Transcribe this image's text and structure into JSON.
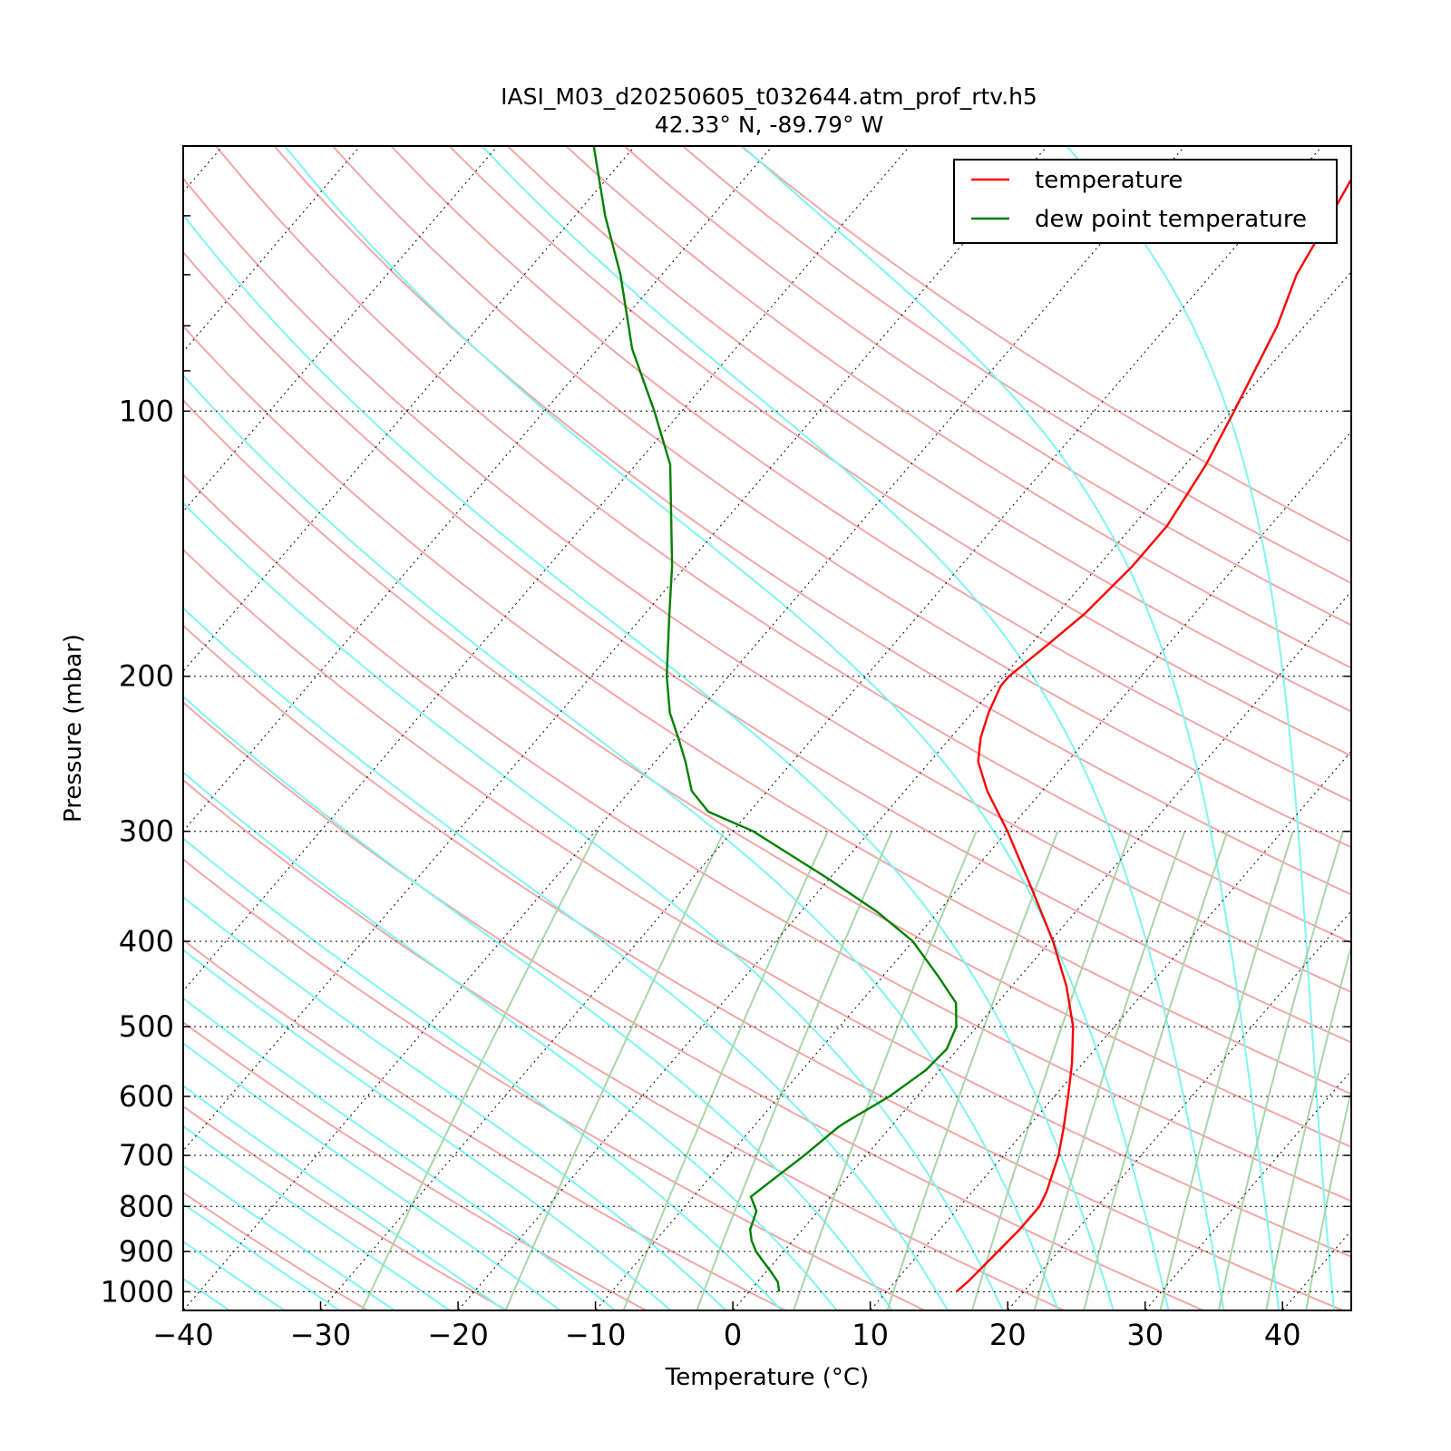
{
  "chart_data": {
    "type": "line",
    "title": "IASI_M03_d20250605_t032644.atm_prof_rtv.h5",
    "subtitle": "42.33° N, -89.79° W",
    "xlabel": "Temperature (°C)",
    "ylabel": "Pressure (mbar)",
    "xlim": [
      -40,
      45
    ],
    "ylim": [
      1050,
      50
    ],
    "yscale": "log",
    "skew": true,
    "x_ticks": [
      "−40",
      "−30",
      "−20",
      "−10",
      "0",
      "10",
      "20",
      "30",
      "40"
    ],
    "y_ticks": [
      "100",
      "200",
      "300",
      "400",
      "500",
      "600",
      "700",
      "800",
      "900",
      "1000"
    ],
    "legend": {
      "position": "top-right",
      "entries": [
        "temperature",
        "dew point temperature"
      ]
    },
    "colors": {
      "temperature": "#ff0000",
      "dew_point": "#008000",
      "dry_adiabats": "#f4a6a6",
      "moist_adiabats": "#7ff5f0",
      "mixing_ratio": "#a8d5a8",
      "isotherms": "#000000"
    },
    "series": [
      {
        "name": "temperature",
        "points": [
          {
            "p": 1000,
            "t": 15.1
          },
          {
            "p": 975,
            "t": 15.3
          },
          {
            "p": 950,
            "t": 15.4
          },
          {
            "p": 925,
            "t": 15.5
          },
          {
            "p": 900,
            "t": 15.6
          },
          {
            "p": 850,
            "t": 15.8
          },
          {
            "p": 800,
            "t": 15.8
          },
          {
            "p": 770,
            "t": 15.4
          },
          {
            "p": 700,
            "t": 14.0
          },
          {
            "p": 650,
            "t": 12.6
          },
          {
            "p": 600,
            "t": 11.0
          },
          {
            "p": 550,
            "t": 9.2
          },
          {
            "p": 500,
            "t": 7.0
          },
          {
            "p": 450,
            "t": 4.0
          },
          {
            "p": 400,
            "t": 0.2
          },
          {
            "p": 350,
            "t": -4.5
          },
          {
            "p": 300,
            "t": -10.0
          },
          {
            "p": 270,
            "t": -14.0
          },
          {
            "p": 250,
            "t": -16.5
          },
          {
            "p": 235,
            "t": -17.8
          },
          {
            "p": 220,
            "t": -18.8
          },
          {
            "p": 205,
            "t": -19.6
          },
          {
            "p": 200,
            "t": -19.6
          },
          {
            "p": 185,
            "t": -18.8
          },
          {
            "p": 170,
            "t": -18.0
          },
          {
            "p": 150,
            "t": -17.5
          },
          {
            "p": 135,
            "t": -17.5
          },
          {
            "p": 115,
            "t": -18.5
          },
          {
            "p": 100,
            "t": -19.8
          },
          {
            "p": 80,
            "t": -22.0
          },
          {
            "p": 70,
            "t": -23.8
          },
          {
            "p": 60,
            "t": -25.0
          },
          {
            "p": 50,
            "t": -26.5
          }
        ]
      },
      {
        "name": "dew point temperature",
        "points": [
          {
            "p": 1000,
            "t": 2.2
          },
          {
            "p": 975,
            "t": 1.5
          },
          {
            "p": 950,
            "t": 0.4
          },
          {
            "p": 925,
            "t": -0.8
          },
          {
            "p": 900,
            "t": -2.0
          },
          {
            "p": 875,
            "t": -3.0
          },
          {
            "p": 850,
            "t": -3.8
          },
          {
            "p": 810,
            "t": -4.5
          },
          {
            "p": 780,
            "t": -5.8
          },
          {
            "p": 760,
            "t": -5.5
          },
          {
            "p": 700,
            "t": -4.5
          },
          {
            "p": 650,
            "t": -3.8
          },
          {
            "p": 640,
            "t": -3.5
          },
          {
            "p": 600,
            "t": -2.0
          },
          {
            "p": 560,
            "t": -1.0
          },
          {
            "p": 530,
            "t": -0.8
          },
          {
            "p": 500,
            "t": -1.5
          },
          {
            "p": 470,
            "t": -3.0
          },
          {
            "p": 440,
            "t": -5.8
          },
          {
            "p": 400,
            "t": -10.0
          },
          {
            "p": 370,
            "t": -14.5
          },
          {
            "p": 340,
            "t": -20.0
          },
          {
            "p": 300,
            "t": -28.5
          },
          {
            "p": 285,
            "t": -33.0
          },
          {
            "p": 270,
            "t": -35.5
          },
          {
            "p": 250,
            "t": -37.8
          },
          {
            "p": 235,
            "t": -39.8
          },
          {
            "p": 220,
            "t": -42.0
          },
          {
            "p": 200,
            "t": -44.5
          },
          {
            "p": 170,
            "t": -48.2
          },
          {
            "p": 150,
            "t": -51.0
          },
          {
            "p": 130,
            "t": -54.5
          },
          {
            "p": 115,
            "t": -57.5
          },
          {
            "p": 100,
            "t": -62.0
          },
          {
            "p": 85,
            "t": -67.5
          },
          {
            "p": 70,
            "t": -73.0
          },
          {
            "p": 60,
            "t": -77.8
          },
          {
            "p": 50,
            "t": -83.0
          }
        ]
      }
    ]
  }
}
